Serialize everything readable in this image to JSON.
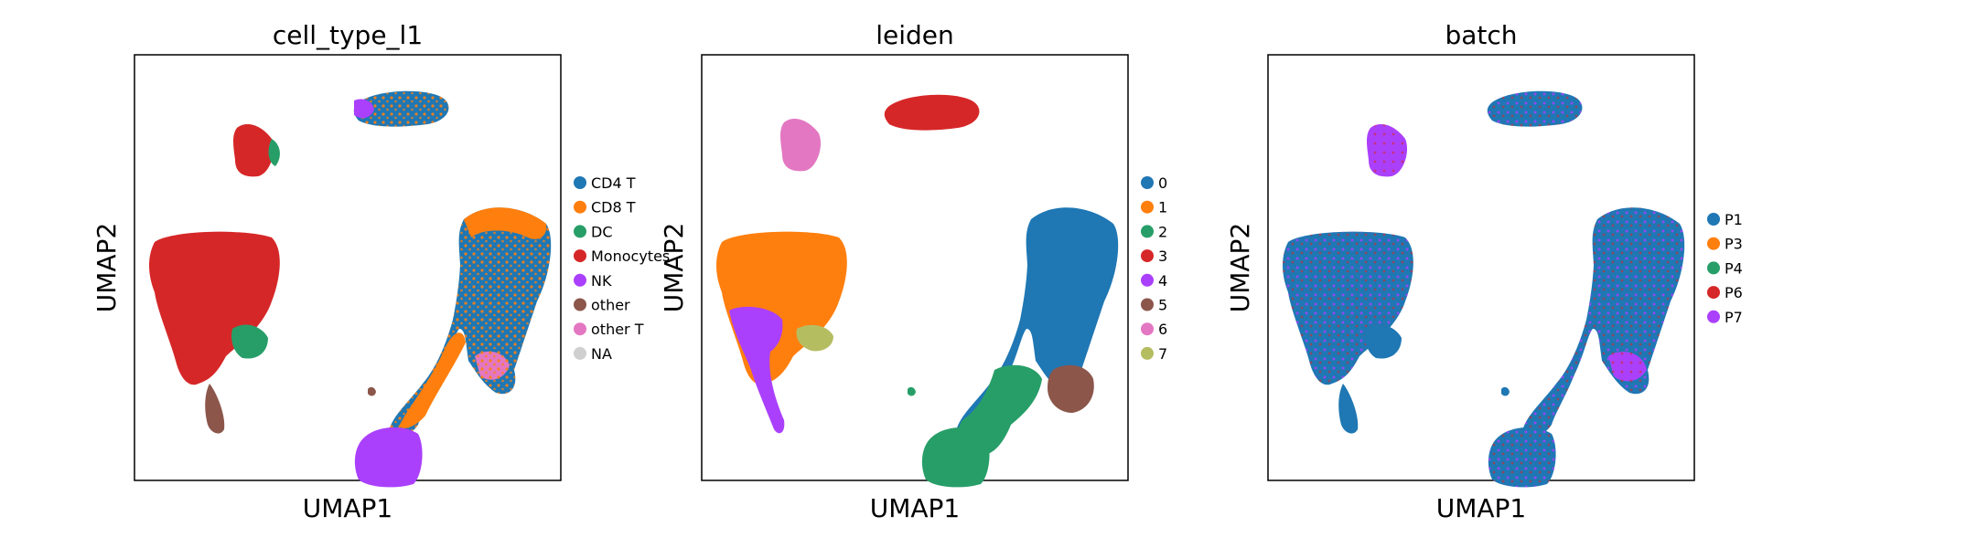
{
  "chart_data": [
    {
      "type": "scatter",
      "title": "cell_type_l1",
      "xlabel": "UMAP1",
      "ylabel": "UMAP2",
      "legend": [
        {
          "label": "CD4 T",
          "color": "#1f77b4"
        },
        {
          "label": "CD8 T",
          "color": "#ff7f0e"
        },
        {
          "label": "DC",
          "color": "#279e68"
        },
        {
          "label": "Monocytes",
          "color": "#d62728"
        },
        {
          "label": "NK",
          "color": "#aa40fc"
        },
        {
          "label": "other",
          "color": "#8c564b"
        },
        {
          "label": "other T",
          "color": "#e377c2"
        },
        {
          "label": "NA",
          "color": "#cfcfcf"
        }
      ]
    },
    {
      "type": "scatter",
      "title": "leiden",
      "xlabel": "UMAP1",
      "ylabel": "UMAP2",
      "legend": [
        {
          "label": "0",
          "color": "#1f77b4"
        },
        {
          "label": "1",
          "color": "#ff7f0e"
        },
        {
          "label": "2",
          "color": "#279e68"
        },
        {
          "label": "3",
          "color": "#d62728"
        },
        {
          "label": "4",
          "color": "#aa40fc"
        },
        {
          "label": "5",
          "color": "#8c564b"
        },
        {
          "label": "6",
          "color": "#e377c2"
        },
        {
          "label": "7",
          "color": "#b5bd61"
        }
      ]
    },
    {
      "type": "scatter",
      "title": "batch",
      "xlabel": "UMAP1",
      "ylabel": "UMAP2",
      "legend": [
        {
          "label": "P1",
          "color": "#1f77b4"
        },
        {
          "label": "P3",
          "color": "#ff7f0e"
        },
        {
          "label": "P4",
          "color": "#279e68"
        },
        {
          "label": "P6",
          "color": "#d62728"
        },
        {
          "label": "P7",
          "color": "#aa40fc"
        }
      ]
    }
  ]
}
